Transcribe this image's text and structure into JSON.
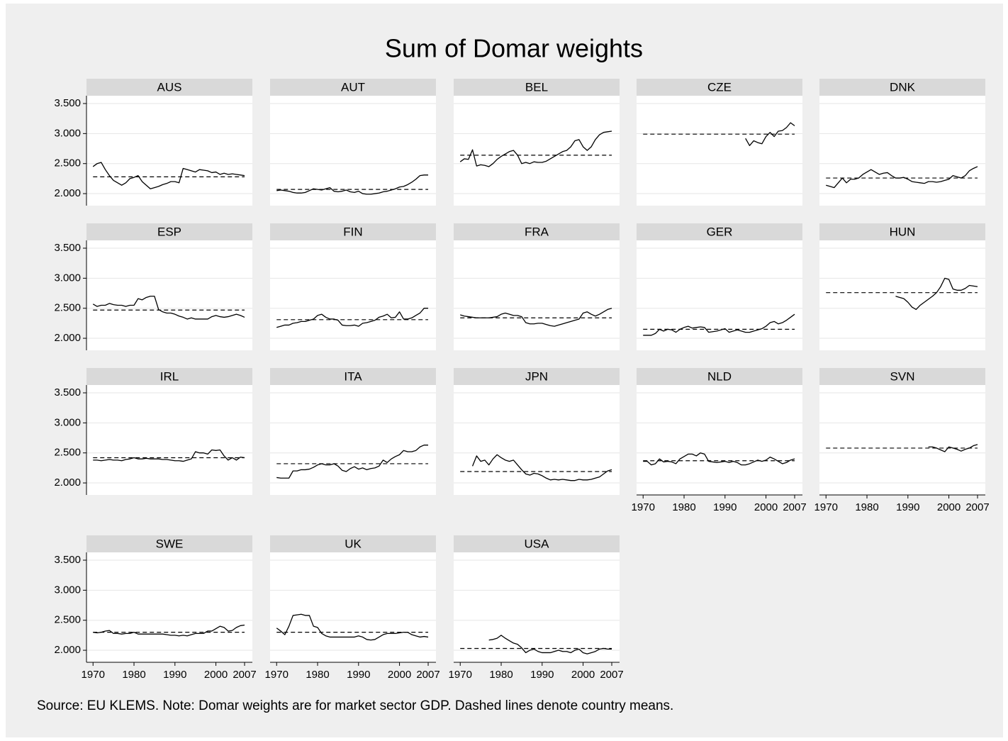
{
  "chart_data": {
    "type": "line",
    "title": "Sum of Domar weights",
    "note": "Source: EU KLEMS. Note: Domar weights are for market sector GDP. Dashed lines denote country means.",
    "line_color": "#000000",
    "mean_color": "#000000",
    "grid": true,
    "x": [
      1970,
      1971,
      1972,
      1973,
      1974,
      1975,
      1976,
      1977,
      1978,
      1979,
      1980,
      1981,
      1982,
      1983,
      1984,
      1985,
      1986,
      1987,
      1988,
      1989,
      1990,
      1991,
      1992,
      1993,
      1994,
      1995,
      1996,
      1997,
      1998,
      1999,
      2000,
      2001,
      2002,
      2003,
      2004,
      2005,
      2006,
      2007
    ],
    "xlim": [
      1968.4,
      2008.9
    ],
    "xticks": [
      1970,
      1980,
      1990,
      2000,
      2007
    ],
    "ylim": [
      1.8,
      3.63
    ],
    "yticks": [
      {
        "value": 2,
        "label": "2.000"
      },
      {
        "value": 2.5,
        "label": "2.500"
      },
      {
        "value": 3,
        "label": "3.000"
      },
      {
        "value": 3.5,
        "label": "3.500"
      }
    ],
    "panels": [
      {
        "name": "AUS",
        "mean": 2.28,
        "values": [
          2.45,
          2.5,
          2.52,
          2.4,
          2.3,
          2.22,
          2.18,
          2.14,
          2.18,
          2.25,
          2.27,
          2.3,
          2.2,
          2.14,
          2.08,
          2.1,
          2.12,
          2.15,
          2.17,
          2.2,
          2.2,
          2.18,
          2.42,
          2.4,
          2.38,
          2.36,
          2.4,
          2.39,
          2.38,
          2.35,
          2.36,
          2.32,
          2.34,
          2.32,
          2.33,
          2.32,
          2.31,
          2.3
        ]
      },
      {
        "name": "AUT",
        "mean": 2.07,
        "values": [
          2.05,
          2.06,
          2.05,
          2.04,
          2.02,
          2.01,
          2.01,
          2.02,
          2.05,
          2.08,
          2.07,
          2.06,
          2.08,
          2.1,
          2.04,
          2.03,
          2.04,
          2.06,
          2.03,
          2.02,
          2.04,
          2.0,
          1.99,
          1.99,
          2.0,
          2.01,
          2.03,
          2.04,
          2.06,
          2.08,
          2.11,
          2.12,
          2.15,
          2.19,
          2.24,
          2.3,
          2.31,
          2.31
        ]
      },
      {
        "name": "BEL",
        "mean": 2.64,
        "values": [
          2.53,
          2.58,
          2.57,
          2.73,
          2.46,
          2.48,
          2.47,
          2.45,
          2.5,
          2.57,
          2.62,
          2.66,
          2.7,
          2.72,
          2.64,
          2.5,
          2.52,
          2.5,
          2.53,
          2.52,
          2.52,
          2.54,
          2.58,
          2.62,
          2.66,
          2.7,
          2.72,
          2.78,
          2.88,
          2.9,
          2.78,
          2.72,
          2.78,
          2.9,
          2.98,
          3.02,
          3.03,
          3.04
        ]
      },
      {
        "name": "CZE",
        "mean": 2.99,
        "values": [
          null,
          null,
          null,
          null,
          null,
          null,
          null,
          null,
          null,
          null,
          null,
          null,
          null,
          null,
          null,
          null,
          null,
          null,
          null,
          null,
          null,
          null,
          null,
          null,
          null,
          2.92,
          2.8,
          2.88,
          2.85,
          2.83,
          2.95,
          3.02,
          2.95,
          3.04,
          3.05,
          3.1,
          3.18,
          3.13
        ]
      },
      {
        "name": "DNK",
        "mean": 2.26,
        "values": [
          2.14,
          2.12,
          2.1,
          2.18,
          2.26,
          2.18,
          2.24,
          2.24,
          2.26,
          2.32,
          2.36,
          2.4,
          2.36,
          2.32,
          2.34,
          2.35,
          2.3,
          2.26,
          2.26,
          2.27,
          2.24,
          2.2,
          2.19,
          2.18,
          2.17,
          2.2,
          2.2,
          2.19,
          2.2,
          2.22,
          2.24,
          2.3,
          2.28,
          2.26,
          2.3,
          2.38,
          2.42,
          2.45
        ]
      },
      {
        "name": "ESP",
        "mean": 2.47,
        "values": [
          2.57,
          2.53,
          2.55,
          2.55,
          2.58,
          2.56,
          2.55,
          2.55,
          2.53,
          2.55,
          2.55,
          2.66,
          2.64,
          2.68,
          2.7,
          2.7,
          2.48,
          2.44,
          2.42,
          2.42,
          2.4,
          2.37,
          2.35,
          2.32,
          2.34,
          2.32,
          2.32,
          2.32,
          2.32,
          2.36,
          2.38,
          2.36,
          2.35,
          2.36,
          2.38,
          2.4,
          2.38,
          2.35
        ]
      },
      {
        "name": "FIN",
        "mean": 2.31,
        "values": [
          2.18,
          2.2,
          2.22,
          2.22,
          2.25,
          2.26,
          2.28,
          2.28,
          2.3,
          2.32,
          2.38,
          2.4,
          2.35,
          2.32,
          2.32,
          2.3,
          2.22,
          2.21,
          2.21,
          2.22,
          2.2,
          2.25,
          2.26,
          2.28,
          2.3,
          2.35,
          2.37,
          2.4,
          2.34,
          2.35,
          2.44,
          2.32,
          2.32,
          2.34,
          2.38,
          2.42,
          2.5,
          2.5
        ]
      },
      {
        "name": "FRA",
        "mean": 2.34,
        "values": [
          2.39,
          2.37,
          2.36,
          2.35,
          2.34,
          2.34,
          2.34,
          2.34,
          2.35,
          2.36,
          2.4,
          2.42,
          2.4,
          2.38,
          2.38,
          2.36,
          2.26,
          2.24,
          2.24,
          2.25,
          2.25,
          2.23,
          2.21,
          2.2,
          2.22,
          2.24,
          2.26,
          2.28,
          2.3,
          2.32,
          2.42,
          2.44,
          2.4,
          2.37,
          2.4,
          2.44,
          2.48,
          2.5
        ]
      },
      {
        "name": "GER",
        "mean": 2.15,
        "values": [
          2.05,
          2.05,
          2.05,
          2.08,
          2.15,
          2.12,
          2.15,
          2.14,
          2.1,
          2.15,
          2.18,
          2.2,
          2.17,
          2.18,
          2.19,
          2.18,
          2.1,
          2.11,
          2.12,
          2.14,
          2.16,
          2.1,
          2.12,
          2.14,
          2.12,
          2.1,
          2.1,
          2.12,
          2.14,
          2.16,
          2.2,
          2.26,
          2.28,
          2.24,
          2.26,
          2.3,
          2.35,
          2.4
        ]
      },
      {
        "name": "HUN",
        "mean": 2.76,
        "values": [
          null,
          null,
          null,
          null,
          null,
          null,
          null,
          null,
          null,
          null,
          null,
          null,
          null,
          null,
          null,
          null,
          null,
          2.7,
          2.68,
          2.66,
          2.6,
          2.52,
          2.48,
          2.55,
          2.6,
          2.65,
          2.7,
          2.76,
          2.86,
          3.0,
          2.98,
          2.82,
          2.8,
          2.8,
          2.83,
          2.88,
          2.87,
          2.86
        ]
      },
      {
        "name": "IRL",
        "mean": 2.42,
        "values": [
          2.38,
          2.38,
          2.37,
          2.38,
          2.39,
          2.38,
          2.38,
          2.37,
          2.39,
          2.4,
          2.42,
          2.4,
          2.4,
          2.41,
          2.4,
          2.4,
          2.4,
          2.39,
          2.39,
          2.38,
          2.37,
          2.37,
          2.36,
          2.38,
          2.4,
          2.52,
          2.5,
          2.5,
          2.48,
          2.55,
          2.54,
          2.55,
          2.45,
          2.38,
          2.42,
          2.38,
          2.43,
          2.42
        ]
      },
      {
        "name": "ITA",
        "mean": 2.32,
        "values": [
          2.09,
          2.08,
          2.08,
          2.08,
          2.2,
          2.2,
          2.22,
          2.22,
          2.23,
          2.26,
          2.3,
          2.32,
          2.3,
          2.3,
          2.32,
          2.28,
          2.21,
          2.19,
          2.24,
          2.27,
          2.23,
          2.25,
          2.22,
          2.24,
          2.25,
          2.28,
          2.38,
          2.34,
          2.4,
          2.44,
          2.47,
          2.54,
          2.52,
          2.52,
          2.54,
          2.6,
          2.63,
          2.63
        ]
      },
      {
        "name": "JPN",
        "mean": 2.19,
        "values": [
          null,
          null,
          null,
          2.28,
          2.45,
          2.36,
          2.38,
          2.3,
          2.4,
          2.47,
          2.42,
          2.38,
          2.36,
          2.38,
          2.3,
          2.22,
          2.15,
          2.13,
          2.16,
          2.15,
          2.12,
          2.08,
          2.05,
          2.06,
          2.05,
          2.06,
          2.05,
          2.04,
          2.04,
          2.06,
          2.05,
          2.05,
          2.06,
          2.08,
          2.1,
          2.15,
          2.2,
          2.22
        ]
      },
      {
        "name": "NLD",
        "mean": 2.37,
        "values": [
          2.36,
          2.36,
          2.3,
          2.32,
          2.4,
          2.35,
          2.36,
          2.35,
          2.32,
          2.4,
          2.44,
          2.48,
          2.48,
          2.45,
          2.5,
          2.48,
          2.36,
          2.35,
          2.34,
          2.35,
          2.36,
          2.34,
          2.36,
          2.34,
          2.3,
          2.3,
          2.32,
          2.35,
          2.38,
          2.36,
          2.38,
          2.43,
          2.4,
          2.36,
          2.32,
          2.34,
          2.38,
          2.4
        ]
      },
      {
        "name": "SVN",
        "mean": 2.58,
        "values": [
          null,
          null,
          null,
          null,
          null,
          null,
          null,
          null,
          null,
          null,
          null,
          null,
          null,
          null,
          null,
          null,
          null,
          null,
          null,
          null,
          null,
          null,
          null,
          null,
          null,
          2.6,
          2.6,
          2.58,
          2.55,
          2.52,
          2.6,
          2.58,
          2.56,
          2.53,
          2.56,
          2.58,
          2.62,
          2.64
        ]
      },
      {
        "name": "SWE",
        "mean": 2.3,
        "values": [
          2.3,
          2.29,
          2.3,
          2.32,
          2.33,
          2.28,
          2.28,
          2.27,
          2.28,
          2.28,
          2.3,
          2.27,
          2.27,
          2.27,
          2.27,
          2.27,
          2.27,
          2.27,
          2.26,
          2.25,
          2.25,
          2.24,
          2.25,
          2.24,
          2.26,
          2.28,
          2.28,
          2.28,
          2.32,
          2.32,
          2.36,
          2.4,
          2.38,
          2.32,
          2.33,
          2.38,
          2.41,
          2.42
        ]
      },
      {
        "name": "UK",
        "mean": 2.3,
        "values": [
          2.37,
          2.32,
          2.26,
          2.4,
          2.58,
          2.59,
          2.6,
          2.58,
          2.58,
          2.4,
          2.38,
          2.28,
          2.24,
          2.22,
          2.22,
          2.22,
          2.22,
          2.22,
          2.22,
          2.22,
          2.24,
          2.22,
          2.18,
          2.17,
          2.18,
          2.22,
          2.26,
          2.28,
          2.28,
          2.28,
          2.29,
          2.3,
          2.3,
          2.26,
          2.24,
          2.22,
          2.23,
          2.22
        ]
      },
      {
        "name": "USA",
        "mean": 2.03,
        "values": [
          null,
          null,
          null,
          null,
          null,
          null,
          null,
          2.17,
          2.18,
          2.2,
          2.25,
          2.2,
          2.16,
          2.12,
          2.1,
          2.04,
          1.96,
          2.0,
          2.02,
          1.98,
          1.96,
          1.96,
          1.96,
          1.98,
          2.0,
          1.98,
          1.98,
          1.96,
          2.0,
          2.02,
          1.96,
          1.94,
          1.96,
          1.98,
          2.02,
          2.03,
          2.02,
          2.02
        ]
      }
    ]
  }
}
